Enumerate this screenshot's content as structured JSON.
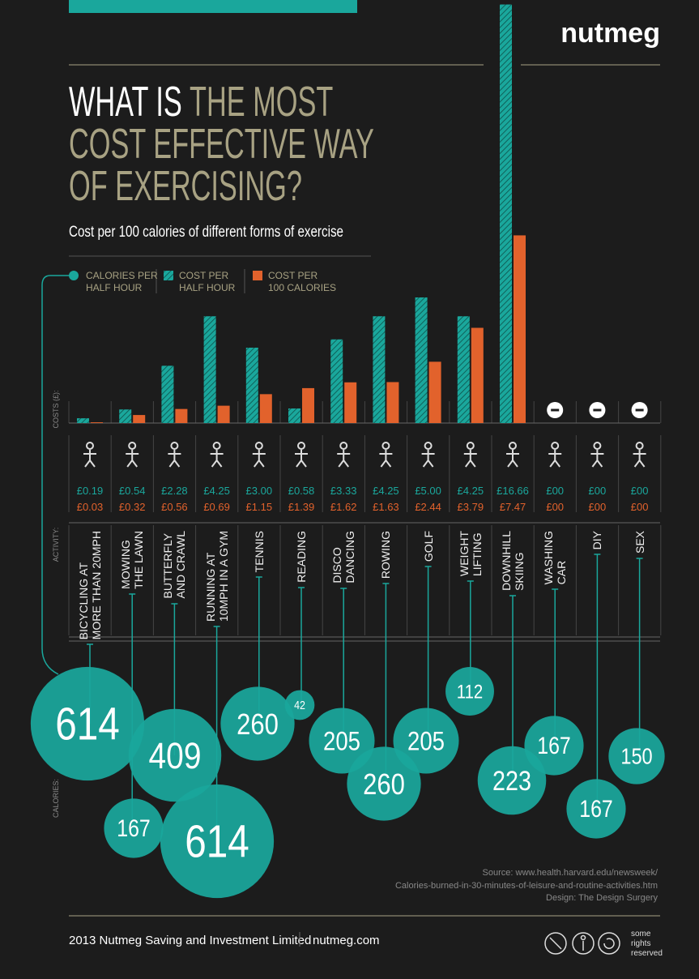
{
  "brand": "nutmeg",
  "title": {
    "highlight": "WHAT IS",
    "lines": [
      "THE MOST",
      "COST EFFECTIVE WAY",
      "OF EXERCISING?"
    ]
  },
  "chart_data": {
    "type": "bar",
    "subtitle": "Cost per 100 calories of different forms of exercise",
    "axis_labels": {
      "cost": "COSTS (£):",
      "activity": "ACTIVITY:",
      "calories": "CALORIES:"
    },
    "categories": [
      "BICYCLING AT\nMORE THAN 20MPH",
      "MOWING\nTHE LAWN",
      "BUTTERFLY\nAND CRAWL",
      "RUNNING AT\n10MPH IN A GYM",
      "TENNIS",
      "READING",
      "DISCO\nDANCING",
      "ROWING",
      "GOLF",
      "WEIGHT\nLIFTING",
      "DOWNHILL\nSKIING",
      "WASHING\nCAR",
      "DIY",
      "SEX"
    ],
    "series": [
      {
        "name": "CALORIES PER\nHALF HOUR",
        "type": "bubble",
        "color": "#1aa79c",
        "values": [
          614,
          167,
          409,
          614,
          260,
          42,
          205,
          260,
          205,
          112,
          223,
          167,
          167,
          150
        ]
      },
      {
        "name": "COST PER\nHALF HOUR",
        "color": "#1aa79c",
        "pattern": "hatch",
        "values": [
          0.19,
          0.54,
          2.28,
          4.25,
          3.0,
          0.58,
          3.33,
          4.25,
          5.0,
          4.25,
          16.66,
          0,
          0,
          0
        ],
        "value_labels": [
          "£0.19",
          "£0.54",
          "£2.28",
          "£4.25",
          "£3.00",
          "£0.58",
          "£3.33",
          "£4.25",
          "£5.00",
          "£4.25",
          "£16.66",
          "£00",
          "£00",
          "£00"
        ]
      },
      {
        "name": "COST PER\n100 CALORIES",
        "color": "#e2622c",
        "values": [
          0.03,
          0.32,
          0.56,
          0.69,
          1.15,
          1.39,
          1.62,
          1.63,
          2.44,
          3.79,
          7.47,
          0,
          0,
          0
        ],
        "value_labels": [
          "£0.03",
          "£0.32",
          "£0.56",
          "£0.69",
          "£1.15",
          "£1.39",
          "£1.62",
          "£1.63",
          "£2.44",
          "£3.79",
          "£7.47",
          "£00",
          "£00",
          "£00"
        ]
      }
    ]
  },
  "footer": {
    "source": [
      "Source: www.health.harvard.edu/newsweek/",
      "Calories-burned-in-30-minutes-of-leisure-and-routine-activities.htm",
      "Design: The Design Surgery"
    ],
    "copyright": "2013 Nutmeg Saving and Investment Limited",
    "website": "nutmeg.com",
    "license": "some\nrights\nreserved"
  }
}
